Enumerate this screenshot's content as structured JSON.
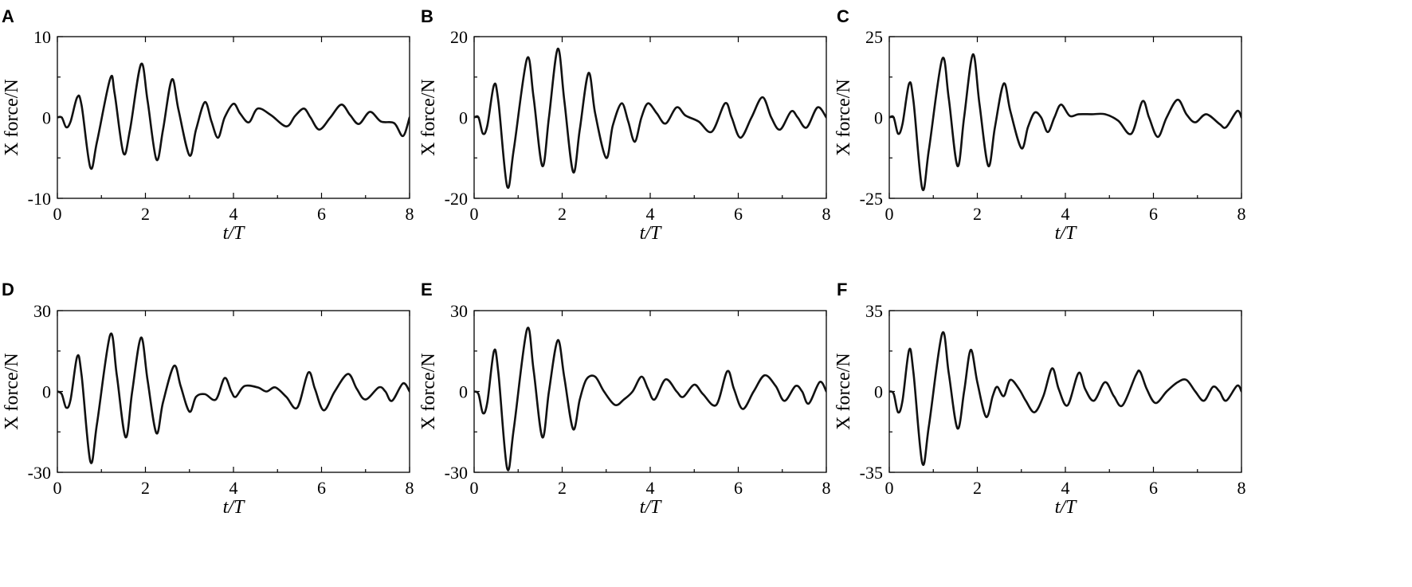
{
  "chart_data": [
    {
      "panel": "A",
      "type": "line",
      "xlabel": "t/T",
      "ylabel": "X force/N",
      "xlim": [
        0,
        8
      ],
      "ylim": [
        -10,
        10
      ],
      "xticks": [
        "0",
        "2",
        "4",
        "6",
        "8"
      ],
      "yticks": [
        "10",
        "0",
        "-10"
      ],
      "series": [
        {
          "values": [
            [
              0,
              0
            ],
            [
              0.1,
              0
            ],
            [
              0.2,
              -1.2
            ],
            [
              0.3,
              -0.5
            ],
            [
              0.45,
              2.5
            ],
            [
              0.55,
              1.5
            ],
            [
              0.75,
              -6.2
            ],
            [
              0.9,
              -3
            ],
            [
              1.2,
              4.8
            ],
            [
              1.3,
              3
            ],
            [
              1.5,
              -4.4
            ],
            [
              1.65,
              -1.5
            ],
            [
              1.9,
              6.6
            ],
            [
              2.05,
              2
            ],
            [
              2.25,
              -5.2
            ],
            [
              2.4,
              -1.5
            ],
            [
              2.6,
              4.7
            ],
            [
              2.75,
              1
            ],
            [
              3.0,
              -4.7
            ],
            [
              3.15,
              -1.5
            ],
            [
              3.35,
              1.9
            ],
            [
              3.5,
              -0.5
            ],
            [
              3.65,
              -2.5
            ],
            [
              3.8,
              0
            ],
            [
              4.0,
              1.7
            ],
            [
              4.15,
              0.5
            ],
            [
              4.35,
              -0.6
            ],
            [
              4.55,
              1.1
            ],
            [
              4.85,
              0.3
            ],
            [
              5.2,
              -1.1
            ],
            [
              5.4,
              0.2
            ],
            [
              5.6,
              1.1
            ],
            [
              5.75,
              0
            ],
            [
              5.95,
              -1.5
            ],
            [
              6.2,
              0
            ],
            [
              6.45,
              1.6
            ],
            [
              6.65,
              0.3
            ],
            [
              6.85,
              -0.8
            ],
            [
              7.1,
              0.7
            ],
            [
              7.35,
              -0.5
            ],
            [
              7.65,
              -0.7
            ],
            [
              7.85,
              -2.3
            ],
            [
              8.0,
              0
            ]
          ]
        }
      ]
    },
    {
      "panel": "B",
      "type": "line",
      "xlabel": "t/T",
      "ylabel": "X force/N",
      "xlim": [
        0,
        8
      ],
      "ylim": [
        -20,
        20
      ],
      "xticks": [
        "0",
        "2",
        "4",
        "6",
        "8"
      ],
      "yticks": [
        "20",
        "0",
        "-20"
      ],
      "series": [
        {
          "values": [
            [
              0,
              0
            ],
            [
              0.1,
              0
            ],
            [
              0.2,
              -4
            ],
            [
              0.3,
              -2
            ],
            [
              0.45,
              8
            ],
            [
              0.55,
              4
            ],
            [
              0.75,
              -17
            ],
            [
              0.9,
              -8
            ],
            [
              1.2,
              14.5
            ],
            [
              1.35,
              5
            ],
            [
              1.55,
              -12
            ],
            [
              1.7,
              0
            ],
            [
              1.9,
              17
            ],
            [
              2.05,
              4
            ],
            [
              2.25,
              -13.5
            ],
            [
              2.4,
              -3
            ],
            [
              2.6,
              11
            ],
            [
              2.75,
              1
            ],
            [
              3.0,
              -10
            ],
            [
              3.15,
              -2
            ],
            [
              3.35,
              3.5
            ],
            [
              3.5,
              -1
            ],
            [
              3.65,
              -6
            ],
            [
              3.8,
              0
            ],
            [
              3.95,
              3.5
            ],
            [
              4.15,
              1
            ],
            [
              4.35,
              -1.5
            ],
            [
              4.6,
              2.5
            ],
            [
              4.8,
              0.5
            ],
            [
              5.1,
              -1
            ],
            [
              5.4,
              -3.5
            ],
            [
              5.7,
              3.5
            ],
            [
              5.85,
              0
            ],
            [
              6.05,
              -5
            ],
            [
              6.3,
              0
            ],
            [
              6.55,
              5
            ],
            [
              6.75,
              0
            ],
            [
              6.95,
              -3
            ],
            [
              7.2,
              1.5
            ],
            [
              7.35,
              0
            ],
            [
              7.55,
              -2.5
            ],
            [
              7.8,
              2.5
            ],
            [
              8.0,
              0
            ]
          ]
        }
      ]
    },
    {
      "panel": "C",
      "type": "line",
      "xlabel": "t/T",
      "ylabel": "X force/N",
      "xlim": [
        0,
        8
      ],
      "ylim": [
        -25,
        25
      ],
      "xticks": [
        "0",
        "2",
        "4",
        "6",
        "8"
      ],
      "yticks": [
        "25",
        "0",
        "-25"
      ],
      "series": [
        {
          "values": [
            [
              0,
              0
            ],
            [
              0.1,
              0
            ],
            [
              0.2,
              -5
            ],
            [
              0.3,
              -2
            ],
            [
              0.45,
              10.5
            ],
            [
              0.55,
              5
            ],
            [
              0.75,
              -22
            ],
            [
              0.9,
              -10
            ],
            [
              1.2,
              18
            ],
            [
              1.35,
              6
            ],
            [
              1.55,
              -15
            ],
            [
              1.7,
              0
            ],
            [
              1.9,
              19.5
            ],
            [
              2.05,
              4
            ],
            [
              2.25,
              -15
            ],
            [
              2.4,
              -3
            ],
            [
              2.6,
              10.5
            ],
            [
              2.75,
              2
            ],
            [
              3.0,
              -9.5
            ],
            [
              3.15,
              -3
            ],
            [
              3.3,
              1.5
            ],
            [
              3.45,
              0
            ],
            [
              3.6,
              -4.5
            ],
            [
              3.75,
              0
            ],
            [
              3.9,
              4
            ],
            [
              4.1,
              0.5
            ],
            [
              4.3,
              1
            ],
            [
              4.6,
              1
            ],
            [
              4.9,
              1
            ],
            [
              5.2,
              -1
            ],
            [
              5.5,
              -5
            ],
            [
              5.75,
              5
            ],
            [
              5.9,
              0
            ],
            [
              6.1,
              -6
            ],
            [
              6.3,
              0
            ],
            [
              6.55,
              5.5
            ],
            [
              6.75,
              1
            ],
            [
              6.95,
              -1.5
            ],
            [
              7.2,
              1
            ],
            [
              7.5,
              -2
            ],
            [
              7.65,
              -3
            ],
            [
              7.9,
              2
            ],
            [
              8.0,
              0
            ]
          ]
        }
      ]
    },
    {
      "panel": "D",
      "type": "line",
      "xlabel": "t/T",
      "ylabel": "X force/N",
      "xlim": [
        0,
        8
      ],
      "ylim": [
        -30,
        30
      ],
      "xticks": [
        "0",
        "2",
        "4",
        "6",
        "8"
      ],
      "yticks": [
        "30",
        "0",
        "-30"
      ],
      "series": [
        {
          "values": [
            [
              0,
              0
            ],
            [
              0.1,
              -1
            ],
            [
              0.2,
              -6
            ],
            [
              0.3,
              -3
            ],
            [
              0.45,
              13
            ],
            [
              0.55,
              6
            ],
            [
              0.75,
              -26
            ],
            [
              0.9,
              -12
            ],
            [
              1.2,
              21
            ],
            [
              1.35,
              6
            ],
            [
              1.55,
              -17
            ],
            [
              1.7,
              0
            ],
            [
              1.9,
              20
            ],
            [
              2.05,
              4
            ],
            [
              2.25,
              -15.5
            ],
            [
              2.4,
              -4
            ],
            [
              2.65,
              9.5
            ],
            [
              2.8,
              2
            ],
            [
              3.0,
              -7.5
            ],
            [
              3.15,
              -2
            ],
            [
              3.35,
              -1
            ],
            [
              3.6,
              -3
            ],
            [
              3.8,
              5
            ],
            [
              3.95,
              0
            ],
            [
              4.05,
              -2
            ],
            [
              4.25,
              2
            ],
            [
              4.55,
              1.5
            ],
            [
              4.75,
              0
            ],
            [
              4.95,
              1.5
            ],
            [
              5.2,
              -2
            ],
            [
              5.45,
              -6
            ],
            [
              5.7,
              7
            ],
            [
              5.85,
              1
            ],
            [
              6.05,
              -7
            ],
            [
              6.3,
              0
            ],
            [
              6.6,
              6.5
            ],
            [
              6.8,
              1
            ],
            [
              7.0,
              -3
            ],
            [
              7.3,
              1.5
            ],
            [
              7.45,
              0
            ],
            [
              7.6,
              -3.5
            ],
            [
              7.85,
              3
            ],
            [
              8.0,
              0
            ]
          ]
        }
      ]
    },
    {
      "panel": "E",
      "type": "line",
      "xlabel": "t/T",
      "ylabel": "X force/N",
      "xlim": [
        0,
        8
      ],
      "ylim": [
        -30,
        30
      ],
      "xticks": [
        "0",
        "2",
        "4",
        "6",
        "8"
      ],
      "yticks": [
        "30",
        "0",
        "-30"
      ],
      "series": [
        {
          "values": [
            [
              0,
              0
            ],
            [
              0.1,
              -1
            ],
            [
              0.2,
              -8
            ],
            [
              0.3,
              -4
            ],
            [
              0.45,
              15
            ],
            [
              0.55,
              7
            ],
            [
              0.75,
              -28.5
            ],
            [
              0.9,
              -14
            ],
            [
              1.2,
              23
            ],
            [
              1.35,
              8
            ],
            [
              1.55,
              -17
            ],
            [
              1.7,
              0
            ],
            [
              1.9,
              19
            ],
            [
              2.05,
              5
            ],
            [
              2.25,
              -14
            ],
            [
              2.4,
              -3
            ],
            [
              2.55,
              4.5
            ],
            [
              2.75,
              5.5
            ],
            [
              2.95,
              0
            ],
            [
              3.2,
              -5
            ],
            [
              3.4,
              -3
            ],
            [
              3.6,
              0
            ],
            [
              3.8,
              5.5
            ],
            [
              3.95,
              1
            ],
            [
              4.1,
              -3
            ],
            [
              4.35,
              4.5
            ],
            [
              4.6,
              0
            ],
            [
              4.75,
              -2
            ],
            [
              5.0,
              2.5
            ],
            [
              5.2,
              -1
            ],
            [
              5.5,
              -5
            ],
            [
              5.75,
              7.5
            ],
            [
              5.9,
              1
            ],
            [
              6.1,
              -6.5
            ],
            [
              6.35,
              0
            ],
            [
              6.6,
              6
            ],
            [
              6.85,
              2
            ],
            [
              7.05,
              -3.5
            ],
            [
              7.3,
              2
            ],
            [
              7.45,
              0
            ],
            [
              7.6,
              -4.5
            ],
            [
              7.85,
              3.5
            ],
            [
              8.0,
              0
            ]
          ]
        }
      ]
    },
    {
      "panel": "F",
      "type": "line",
      "xlabel": "t/T",
      "ylabel": "X force/N",
      "xlim": [
        0,
        8
      ],
      "ylim": [
        -35,
        35
      ],
      "xticks": [
        "0",
        "2",
        "4",
        "6",
        "8"
      ],
      "yticks": [
        "35",
        "0",
        "-35"
      ],
      "series": [
        {
          "values": [
            [
              0,
              0
            ],
            [
              0.1,
              -1
            ],
            [
              0.2,
              -9
            ],
            [
              0.3,
              -4
            ],
            [
              0.45,
              18
            ],
            [
              0.55,
              8
            ],
            [
              0.75,
              -31
            ],
            [
              0.9,
              -15
            ],
            [
              1.2,
              25
            ],
            [
              1.35,
              8
            ],
            [
              1.55,
              -16
            ],
            [
              1.7,
              0
            ],
            [
              1.85,
              18
            ],
            [
              2.0,
              4
            ],
            [
              2.2,
              -11
            ],
            [
              2.35,
              -2
            ],
            [
              2.45,
              2
            ],
            [
              2.6,
              -2
            ],
            [
              2.75,
              5
            ],
            [
              2.95,
              1
            ],
            [
              3.1,
              -4
            ],
            [
              3.3,
              -9
            ],
            [
              3.5,
              -2
            ],
            [
              3.7,
              10
            ],
            [
              3.85,
              1
            ],
            [
              4.05,
              -6
            ],
            [
              4.3,
              8
            ],
            [
              4.45,
              1
            ],
            [
              4.65,
              -4
            ],
            [
              4.9,
              4
            ],
            [
              5.1,
              -2
            ],
            [
              5.3,
              -6
            ],
            [
              5.6,
              7
            ],
            [
              5.7,
              8.5
            ],
            [
              5.85,
              1
            ],
            [
              6.05,
              -5
            ],
            [
              6.3,
              0
            ],
            [
              6.55,
              4
            ],
            [
              6.75,
              5
            ],
            [
              6.95,
              0
            ],
            [
              7.15,
              -4
            ],
            [
              7.35,
              2
            ],
            [
              7.5,
              0
            ],
            [
              7.65,
              -4
            ],
            [
              7.9,
              2.5
            ],
            [
              8.0,
              0
            ]
          ]
        }
      ]
    }
  ]
}
